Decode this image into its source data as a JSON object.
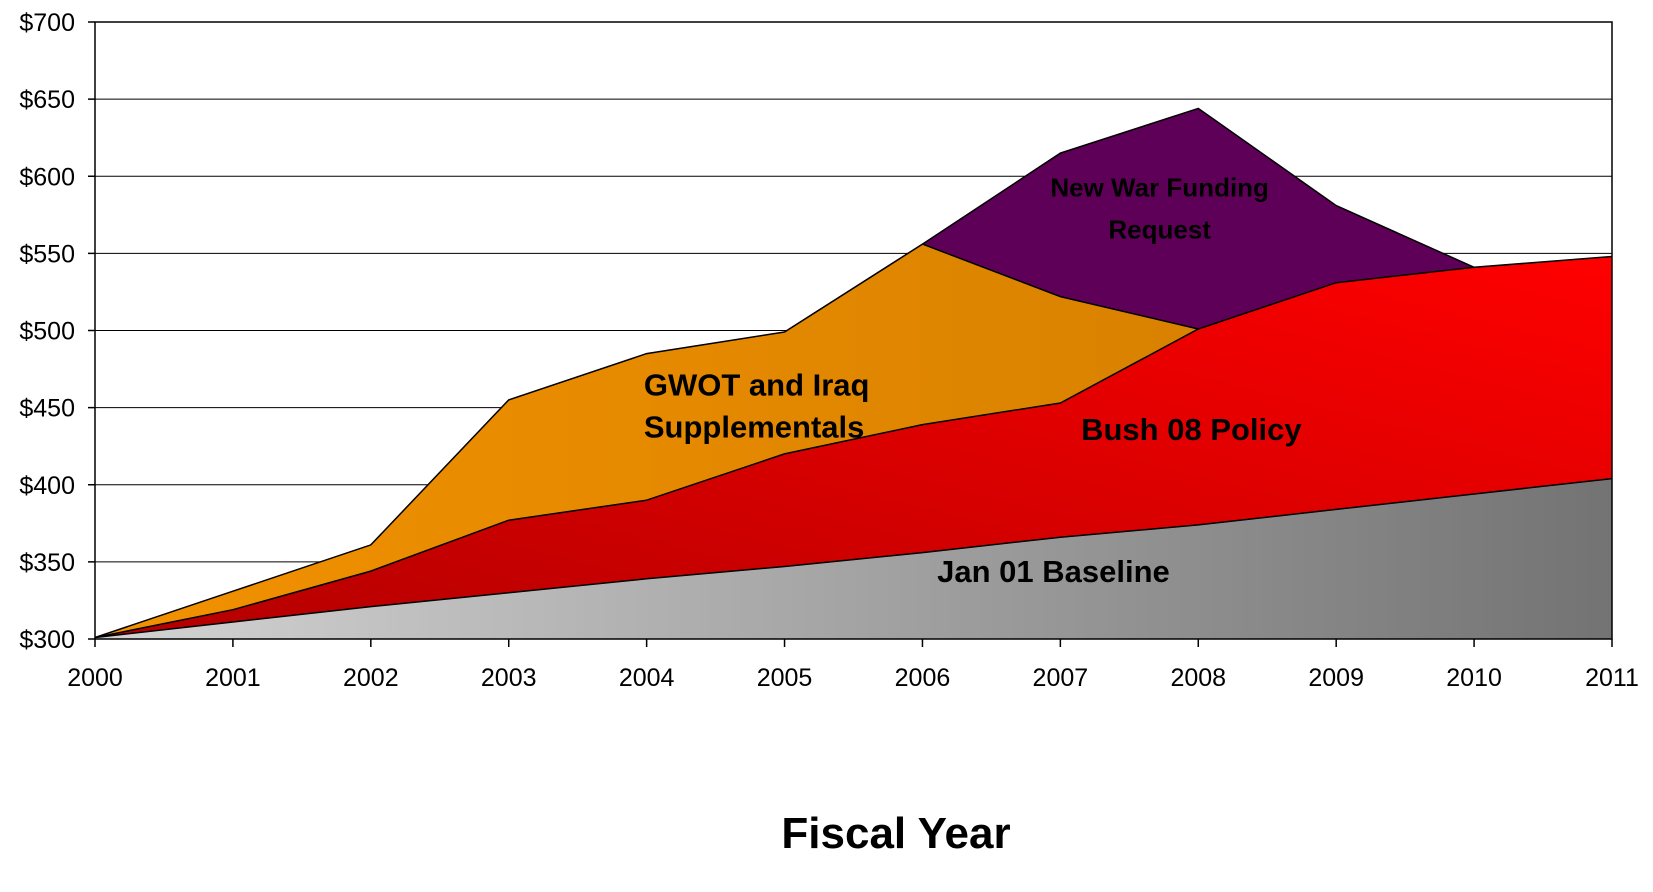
{
  "chart_data": {
    "type": "area",
    "stacked": true,
    "title": "",
    "xlabel": "Fiscal Year",
    "ylabel": "",
    "x": [
      2000,
      2001,
      2002,
      2003,
      2004,
      2005,
      2006,
      2007,
      2008,
      2009,
      2010,
      2011
    ],
    "x_tick_labels": [
      "2000",
      "2001",
      "2002",
      "2003",
      "2004",
      "2005",
      "2006",
      "2007",
      "2008",
      "2009",
      "2010",
      "2011"
    ],
    "ylim": [
      300,
      700
    ],
    "y_ticks": [
      300,
      350,
      400,
      450,
      500,
      550,
      600,
      650,
      700
    ],
    "y_tick_labels": [
      "$300",
      "$350",
      "$400",
      "$450",
      "$500",
      "$550",
      "$600",
      "$650",
      "$700"
    ],
    "grid": true,
    "legend": "none",
    "series": [
      {
        "name": "Jan 01 Baseline",
        "cumulative_values": [
          301,
          311,
          321,
          330,
          339,
          347,
          356,
          366,
          374,
          384,
          394,
          404
        ],
        "color_light": "#d4d4d4",
        "color_dark": "#737373"
      },
      {
        "name": "Bush 08 Policy",
        "cumulative_values": [
          301,
          319,
          344,
          377,
          390,
          420,
          439,
          453,
          501,
          531,
          541,
          548
        ],
        "color_light": "#b30000",
        "color_dark": "#ff0000"
      },
      {
        "name": "GWOT and Iraq Supplementals",
        "name_lines": [
          "GWOT and Iraq",
          "Supplementals"
        ],
        "cumulative_values": [
          301,
          331,
          361,
          455,
          485,
          499,
          556,
          522,
          501,
          null,
          null,
          null
        ],
        "color_light": "#f29100",
        "color_dark": "#d98200"
      },
      {
        "name": "New War Funding Request",
        "name_lines": [
          "New War Funding",
          "Request"
        ],
        "cumulative_values": [
          null,
          null,
          null,
          null,
          null,
          null,
          556,
          615,
          644,
          581,
          541,
          null
        ],
        "color": "#5f0058"
      }
    ]
  }
}
